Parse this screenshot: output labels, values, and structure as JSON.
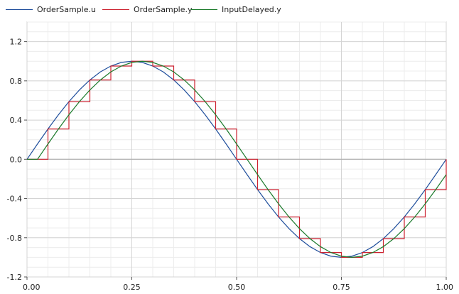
{
  "chart_data": {
    "type": "line",
    "title": "",
    "xlabel": "",
    "ylabel": "",
    "xlim": [
      0.0,
      1.0
    ],
    "ylim": [
      -1.2,
      1.4
    ],
    "grid": true,
    "legend_position": "top",
    "x_ticks": [
      {
        "value": 0.0,
        "label": "0.00"
      },
      {
        "value": 0.25,
        "label": "0.25"
      },
      {
        "value": 0.5,
        "label": "0.50"
      },
      {
        "value": 0.75,
        "label": "0.75"
      },
      {
        "value": 1.0,
        "label": "1.00"
      }
    ],
    "y_ticks": [
      {
        "value": 1.2,
        "label": "1.2"
      },
      {
        "value": 0.8,
        "label": "0.8"
      },
      {
        "value": 0.4,
        "label": "0.4"
      },
      {
        "value": 0.0,
        "label": "0.0"
      },
      {
        "value": -0.4,
        "label": "-0.4"
      },
      {
        "value": -0.8,
        "label": "-0.8"
      },
      {
        "value": -1.2,
        "label": "-1.2"
      }
    ],
    "series": [
      {
        "name": "OrderSample.u",
        "color": "#1f4e9c",
        "style": "line",
        "x": [
          0.0,
          0.025,
          0.05,
          0.075,
          0.1,
          0.125,
          0.15,
          0.175,
          0.2,
          0.225,
          0.25,
          0.275,
          0.3,
          0.325,
          0.35,
          0.375,
          0.4,
          0.425,
          0.45,
          0.475,
          0.5,
          0.525,
          0.55,
          0.575,
          0.6,
          0.625,
          0.65,
          0.675,
          0.7,
          0.725,
          0.75,
          0.775,
          0.8,
          0.825,
          0.85,
          0.875,
          0.9,
          0.925,
          0.95,
          0.975,
          1.0
        ],
        "values": [
          0.0,
          0.156,
          0.309,
          0.454,
          0.588,
          0.707,
          0.809,
          0.891,
          0.951,
          0.988,
          1.0,
          0.988,
          0.951,
          0.891,
          0.809,
          0.707,
          0.588,
          0.454,
          0.309,
          0.156,
          0.0,
          -0.156,
          -0.309,
          -0.454,
          -0.588,
          -0.707,
          -0.809,
          -0.891,
          -0.951,
          -0.988,
          -1.0,
          -0.988,
          -0.951,
          -0.891,
          -0.809,
          -0.707,
          -0.588,
          -0.454,
          -0.309,
          -0.156,
          0.0
        ]
      },
      {
        "name": "OrderSample.y",
        "color": "#cc2230",
        "style": "step",
        "x": [
          0.0,
          0.05,
          0.1,
          0.15,
          0.2,
          0.25,
          0.3,
          0.35,
          0.4,
          0.45,
          0.5,
          0.55,
          0.6,
          0.65,
          0.7,
          0.75,
          0.8,
          0.85,
          0.9,
          0.95,
          1.0
        ],
        "values": [
          0.0,
          0.309,
          0.588,
          0.809,
          0.951,
          1.0,
          0.951,
          0.809,
          0.588,
          0.309,
          0.0,
          -0.309,
          -0.588,
          -0.809,
          -0.951,
          -1.0,
          -0.951,
          -0.809,
          -0.588,
          -0.309,
          0.0
        ]
      },
      {
        "name": "InputDelayed.y",
        "color": "#1b7a2b",
        "style": "line",
        "x": [
          0.0,
          0.025,
          0.05,
          0.075,
          0.1,
          0.125,
          0.15,
          0.175,
          0.2,
          0.225,
          0.25,
          0.275,
          0.3,
          0.325,
          0.35,
          0.375,
          0.4,
          0.425,
          0.45,
          0.475,
          0.5,
          0.525,
          0.55,
          0.575,
          0.6,
          0.625,
          0.65,
          0.675,
          0.7,
          0.725,
          0.75,
          0.775,
          0.8,
          0.825,
          0.85,
          0.875,
          0.9,
          0.925,
          0.95,
          0.975,
          1.0
        ],
        "values": [
          0.0,
          0.0,
          0.156,
          0.309,
          0.454,
          0.588,
          0.707,
          0.809,
          0.891,
          0.951,
          0.988,
          1.0,
          0.988,
          0.951,
          0.891,
          0.809,
          0.707,
          0.588,
          0.454,
          0.309,
          0.156,
          0.0,
          -0.156,
          -0.309,
          -0.454,
          -0.588,
          -0.707,
          -0.809,
          -0.891,
          -0.951,
          -0.988,
          -1.0,
          -0.988,
          -0.951,
          -0.891,
          -0.809,
          -0.707,
          -0.588,
          -0.454,
          -0.309,
          -0.156
        ]
      }
    ]
  }
}
